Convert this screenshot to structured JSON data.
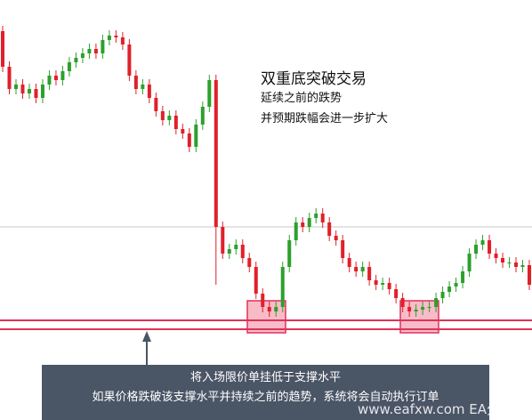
{
  "chart_data": {
    "type": "candlestick",
    "ylim": [
      0,
      472
    ],
    "open": [
      437,
      397,
      372,
      377,
      367,
      372,
      362,
      377,
      387,
      382,
      392,
      402,
      407,
      412,
      417,
      412,
      427,
      432,
      430,
      422,
      387,
      372,
      377,
      362,
      347,
      337,
      342,
      327,
      322,
      307,
      332,
      352,
      382,
      217,
      187,
      192,
      197,
      182,
      172,
      142,
      127,
      122,
      127,
      172,
      202,
      222,
      217,
      227,
      232,
      222,
      207,
      202,
      182,
      172,
      167,
      172,
      157,
      152,
      154,
      147,
      137,
      127,
      122,
      124,
      127,
      127,
      137,
      144,
      150,
      154,
      167,
      187,
      197,
      202,
      187,
      182,
      177,
      177,
      172,
      174
    ],
    "high": [
      443,
      403,
      383,
      383,
      378,
      378,
      383,
      393,
      393,
      398,
      408,
      413,
      418,
      423,
      423,
      433,
      438,
      438,
      436,
      428,
      393,
      383,
      383,
      368,
      353,
      348,
      348,
      333,
      328,
      338,
      358,
      388,
      388,
      223,
      198,
      203,
      203,
      188,
      178,
      148,
      133,
      133,
      178,
      208,
      228,
      228,
      233,
      238,
      238,
      228,
      213,
      208,
      188,
      178,
      178,
      178,
      163,
      160,
      160,
      153,
      143,
      133,
      130,
      133,
      133,
      143,
      150,
      156,
      160,
      173,
      193,
      203,
      208,
      208,
      193,
      188,
      183,
      183,
      180,
      180
    ],
    "low": [
      391,
      366,
      366,
      361,
      361,
      356,
      356,
      371,
      376,
      376,
      386,
      396,
      401,
      406,
      406,
      406,
      421,
      424,
      416,
      381,
      366,
      366,
      356,
      341,
      331,
      331,
      321,
      316,
      301,
      301,
      326,
      346,
      152,
      181,
      181,
      186,
      176,
      166,
      136,
      121,
      116,
      116,
      121,
      166,
      196,
      211,
      211,
      221,
      216,
      201,
      196,
      176,
      166,
      161,
      161,
      151,
      146,
      146,
      141,
      131,
      121,
      116,
      116,
      118,
      121,
      121,
      131,
      138,
      144,
      148,
      161,
      181,
      191,
      181,
      176,
      171,
      171,
      166,
      166,
      146
    ],
    "close": [
      397,
      372,
      377,
      367,
      372,
      362,
      377,
      387,
      382,
      392,
      402,
      407,
      412,
      417,
      412,
      427,
      432,
      430,
      422,
      387,
      372,
      377,
      362,
      347,
      337,
      342,
      327,
      322,
      307,
      332,
      352,
      382,
      217,
      187,
      192,
      197,
      182,
      172,
      142,
      127,
      122,
      127,
      172,
      202,
      222,
      217,
      227,
      232,
      222,
      207,
      202,
      182,
      172,
      167,
      172,
      157,
      152,
      154,
      147,
      137,
      127,
      122,
      124,
      127,
      127,
      137,
      144,
      150,
      154,
      167,
      187,
      197,
      202,
      187,
      182,
      177,
      177,
      172,
      174,
      152
    ],
    "up_color": "#2ca02c",
    "down_color": "#e0202a",
    "reference_line": 217,
    "support_lines": [
      112,
      102
    ],
    "support_color": "#e0305a",
    "title": "双重底突破交易",
    "subtitle_1": "延续之前的跌势",
    "subtitle_2": "并预期跌幅会进一步扩大",
    "note_1": "将入场限价单挂低于支撑水平",
    "note_2": "如果价格跌破该支撑水平并持续之前的趋势，系统将会自动执行订单",
    "watermark": "www.eafxw.com EA分享网"
  }
}
